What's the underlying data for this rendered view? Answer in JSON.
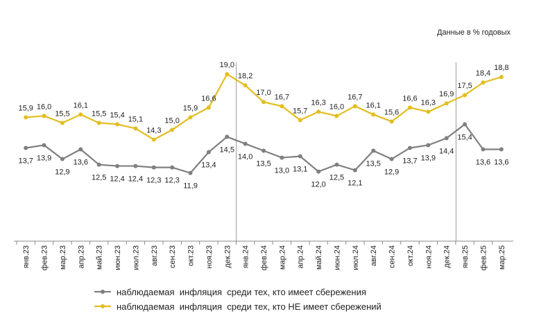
{
  "chart_data": {
    "type": "line",
    "annotation": "Данные в % годовых",
    "categories": [
      "янв.23",
      "фев.23",
      "мар.23",
      "апр.23",
      "май.23",
      "июн.23",
      "июл.23",
      "авг.23",
      "сен.23",
      "окт.23",
      "ноя.23",
      "дек.23",
      "янв.24",
      "фев.24",
      "мар.24",
      "апр.24",
      "май.24",
      "июн.24",
      "июл.24",
      "авг.24",
      "сен.24",
      "окт.24",
      "ноя.24",
      "дек.24",
      "янв.25",
      "фев.25",
      "мар.25"
    ],
    "series": [
      {
        "name": "наблюдаемая  инфляция  среди тех, кто имеет сбережения",
        "color": "#7f7f7f",
        "values": [
          13.7,
          13.9,
          12.9,
          13.6,
          12.5,
          12.4,
          12.4,
          12.3,
          12.3,
          11.9,
          13.4,
          14.5,
          14.0,
          13.5,
          13.0,
          13.1,
          12.0,
          12.5,
          12.1,
          13.5,
          12.9,
          13.7,
          13.9,
          14.4,
          15.4,
          13.6,
          13.6
        ],
        "value_labels": [
          "13,7",
          "13,9",
          "12,9",
          "13,6",
          "12,5",
          "12,4",
          "12,4",
          "12,3",
          "12,3",
          "11,9",
          "13,4",
          "14,5",
          "14,0",
          "13,5",
          "13,0",
          "13,1",
          "12,0",
          "12,5",
          "12,1",
          "13,5",
          "12,9",
          "13,7",
          "13,9",
          "14,4",
          "15,4",
          "13,6",
          "13,6"
        ]
      },
      {
        "name": "наблюдаемая  инфляция  среди тех, кто НЕ имеет сбережений",
        "color": "#e3bd1f",
        "values": [
          15.9,
          16.0,
          15.5,
          16.1,
          15.5,
          15.4,
          15.1,
          14.3,
          15.0,
          15.9,
          16.6,
          19.0,
          18.2,
          17.0,
          16.7,
          15.7,
          16.3,
          16.0,
          16.7,
          16.1,
          15.6,
          16.6,
          16.3,
          16.9,
          17.5,
          18.4,
          18.8
        ],
        "value_labels": [
          "15,9",
          "16,0",
          "15,5",
          "16,1",
          "15,5",
          "15,4",
          "15,1",
          "14,3",
          "15,0",
          "15,9",
          "16,6",
          "19,0",
          "18,2",
          "17,0",
          "16,7",
          "15,7",
          "16,3",
          "16,0",
          "16,7",
          "16,1",
          "15,6",
          "16,6",
          "16,3",
          "16,9",
          "17,5",
          "18,4",
          "18,8"
        ]
      }
    ],
    "ylim": [
      7,
      20
    ]
  }
}
